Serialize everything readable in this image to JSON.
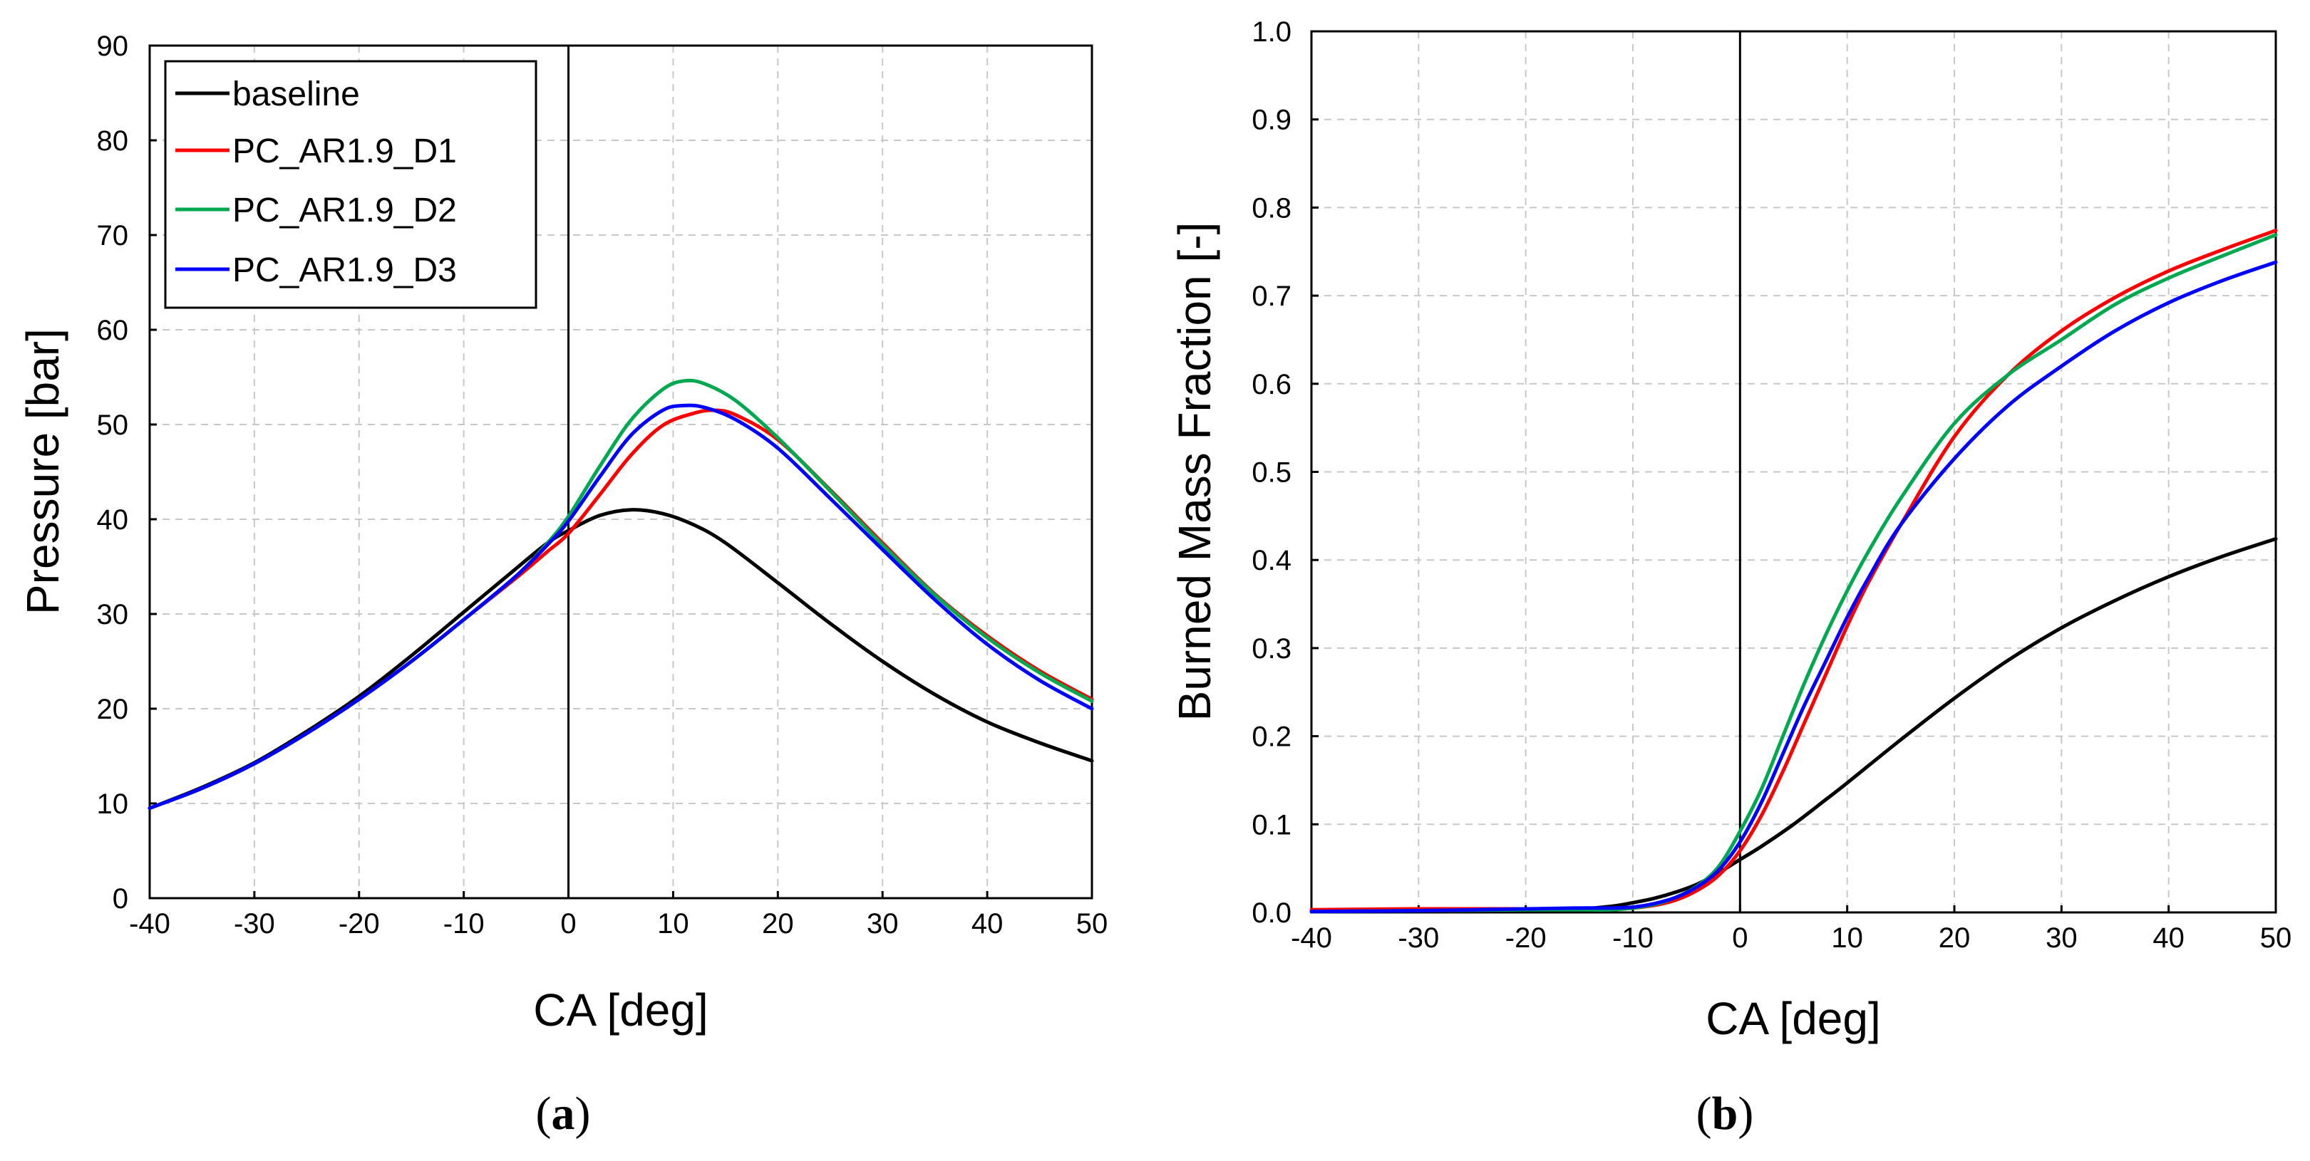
{
  "chart_data": [
    {
      "type": "line",
      "panel_label": "a",
      "xlabel": "CA [deg]",
      "ylabel": "Pressure [bar]",
      "xlim": [
        -40,
        50
      ],
      "ylim": [
        0,
        90
      ],
      "xticks": [
        -40,
        -30,
        -20,
        -10,
        0,
        10,
        20,
        30,
        40,
        50
      ],
      "yticks": [
        0,
        10,
        20,
        30,
        40,
        50,
        60,
        70,
        80,
        90
      ],
      "xtick_labels": [
        "-40",
        "-30",
        "-20",
        "-10",
        "0",
        "10",
        "20",
        "30",
        "40",
        "50"
      ],
      "ytick_labels": [
        "0",
        "10",
        "20",
        "30",
        "40",
        "50",
        "60",
        "70",
        "80",
        "90"
      ],
      "grid": true,
      "vertical_line_at": 0,
      "legend_position": "top-left",
      "series": [
        {
          "name": "baseline",
          "color": "#000000",
          "x": [
            -40,
            -35,
            -30,
            -25,
            -20,
            -15,
            -10,
            -5,
            -2,
            0,
            3,
            6,
            9,
            12,
            15,
            20,
            25,
            30,
            35,
            40,
            45,
            50
          ],
          "y": [
            9.5,
            11.7,
            14.3,
            17.6,
            21.3,
            25.6,
            30.2,
            34.8,
            37.5,
            38.8,
            40.4,
            41.0,
            40.6,
            39.4,
            37.5,
            33.3,
            29.0,
            25.0,
            21.5,
            18.6,
            16.4,
            14.5
          ]
        },
        {
          "name": "PC_AR1.9_D1",
          "color": "#ff0000",
          "x": [
            -40,
            -35,
            -30,
            -25,
            -20,
            -15,
            -10,
            -5,
            -2,
            0,
            3,
            6,
            9,
            12,
            14,
            16,
            20,
            25,
            30,
            35,
            40,
            45,
            50
          ],
          "y": [
            9.5,
            11.6,
            14.2,
            17.4,
            21.0,
            25.0,
            29.4,
            33.8,
            36.6,
            38.5,
            42.6,
            46.8,
            49.9,
            51.2,
            51.5,
            51.0,
            48.4,
            43.1,
            37.5,
            32.1,
            27.7,
            24.0,
            21.0
          ]
        },
        {
          "name": "PC_AR1.9_D2",
          "color": "#00a84f",
          "x": [
            -40,
            -35,
            -30,
            -25,
            -20,
            -15,
            -10,
            -5,
            -2,
            0,
            3,
            6,
            9,
            11,
            13,
            16,
            20,
            25,
            30,
            35,
            40,
            45,
            50
          ],
          "y": [
            9.5,
            11.6,
            14.2,
            17.4,
            21.0,
            25.0,
            29.4,
            34.0,
            37.5,
            40.3,
            45.6,
            50.5,
            53.7,
            54.6,
            54.3,
            52.5,
            48.6,
            43.0,
            37.3,
            32.0,
            27.5,
            23.8,
            20.8
          ]
        },
        {
          "name": "PC_AR1.9_D3",
          "color": "#0000ff",
          "x": [
            -40,
            -35,
            -30,
            -25,
            -20,
            -15,
            -10,
            -5,
            -2,
            0,
            3,
            6,
            9,
            11,
            13,
            16,
            20,
            25,
            30,
            35,
            40,
            45,
            50
          ],
          "y": [
            9.5,
            11.6,
            14.2,
            17.4,
            21.0,
            25.0,
            29.4,
            34.0,
            37.3,
            39.8,
            44.5,
            48.9,
            51.5,
            52.0,
            51.8,
            50.5,
            47.5,
            42.2,
            36.8,
            31.5,
            26.8,
            23.0,
            20.0
          ]
        }
      ]
    },
    {
      "type": "line",
      "panel_label": "b",
      "xlabel": "CA [deg]",
      "ylabel": "Burned Mass Fraction [-]",
      "xlim": [
        -40,
        50
      ],
      "ylim": [
        0.0,
        1.0
      ],
      "xticks": [
        -40,
        -30,
        -20,
        -10,
        0,
        10,
        20,
        30,
        40,
        50
      ],
      "yticks": [
        0.0,
        0.1,
        0.2,
        0.3,
        0.4,
        0.5,
        0.6,
        0.7,
        0.8,
        0.9,
        1.0
      ],
      "xtick_labels": [
        "-40",
        "-30",
        "-20",
        "-10",
        "0",
        "10",
        "20",
        "30",
        "40",
        "50"
      ],
      "ytick_labels": [
        "0.0",
        "0.1",
        "0.2",
        "0.3",
        "0.4",
        "0.5",
        "0.6",
        "0.7",
        "0.8",
        "0.9",
        "1.0"
      ],
      "grid": true,
      "vertical_line_at": 0,
      "series": [
        {
          "name": "baseline",
          "color": "#000000",
          "x": [
            -40,
            -30,
            -20,
            -15,
            -12,
            -10,
            -8,
            -6,
            -4,
            -2,
            0,
            2,
            5,
            8,
            10,
            15,
            20,
            25,
            30,
            35,
            40,
            45,
            50
          ],
          "y": [
            0.001,
            0.002,
            0.003,
            0.004,
            0.007,
            0.011,
            0.016,
            0.023,
            0.032,
            0.045,
            0.06,
            0.075,
            0.1,
            0.128,
            0.147,
            0.196,
            0.243,
            0.286,
            0.323,
            0.354,
            0.381,
            0.404,
            0.424
          ]
        },
        {
          "name": "PC_AR1.9_D1",
          "color": "#ff0000",
          "x": [
            -40,
            -30,
            -20,
            -15,
            -12,
            -10,
            -8,
            -6,
            -4,
            -2,
            0,
            2,
            4,
            6,
            8,
            10,
            12,
            15,
            20,
            25,
            30,
            35,
            40,
            45,
            50
          ],
          "y": [
            0.003,
            0.004,
            0.004,
            0.004,
            0.004,
            0.005,
            0.008,
            0.014,
            0.025,
            0.042,
            0.07,
            0.11,
            0.16,
            0.215,
            0.27,
            0.325,
            0.375,
            0.44,
            0.54,
            0.61,
            0.66,
            0.698,
            0.728,
            0.752,
            0.774
          ]
        },
        {
          "name": "PC_AR1.9_D2",
          "color": "#00a84f",
          "x": [
            -40,
            -30,
            -20,
            -15,
            -12,
            -10,
            -8,
            -6,
            -4,
            -2,
            0,
            2,
            4,
            6,
            8,
            10,
            12,
            15,
            20,
            25,
            30,
            35,
            40,
            45,
            50
          ],
          "y": [
            0.001,
            0.002,
            0.003,
            0.003,
            0.003,
            0.005,
            0.009,
            0.017,
            0.03,
            0.052,
            0.092,
            0.14,
            0.2,
            0.26,
            0.315,
            0.365,
            0.41,
            0.47,
            0.555,
            0.61,
            0.65,
            0.69,
            0.72,
            0.745,
            0.769
          ]
        },
        {
          "name": "PC_AR1.9_D3",
          "color": "#0000ff",
          "x": [
            -40,
            -30,
            -20,
            -15,
            -12,
            -10,
            -8,
            -6,
            -4,
            -2,
            0,
            2,
            4,
            6,
            8,
            10,
            12,
            15,
            20,
            25,
            30,
            35,
            40,
            45,
            50
          ],
          "y": [
            0.001,
            0.002,
            0.004,
            0.005,
            0.005,
            0.006,
            0.01,
            0.017,
            0.029,
            0.048,
            0.08,
            0.125,
            0.18,
            0.235,
            0.285,
            0.335,
            0.38,
            0.44,
            0.515,
            0.575,
            0.62,
            0.66,
            0.692,
            0.717,
            0.738
          ]
        }
      ]
    }
  ]
}
